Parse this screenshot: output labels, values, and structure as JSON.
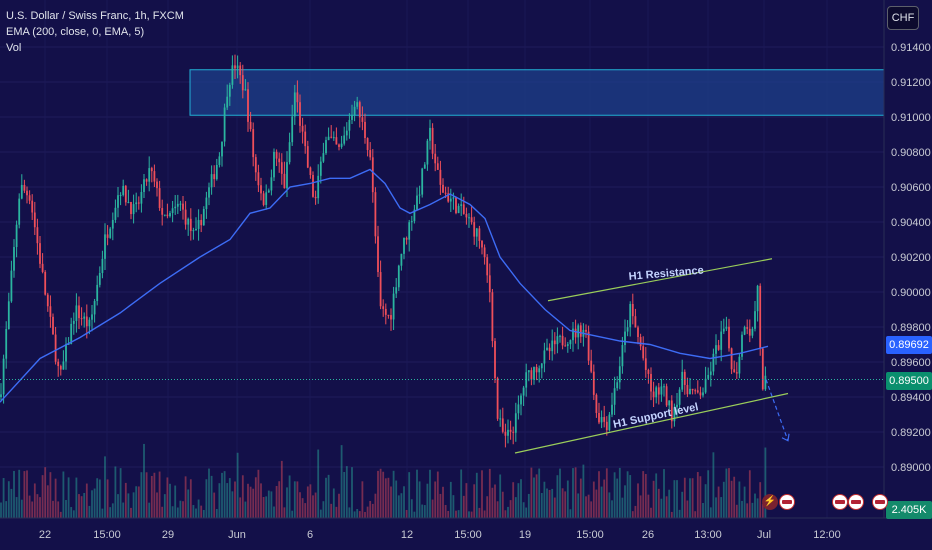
{
  "legend": {
    "symbol": "U.S. Dollar / Swiss Franc, 1h, FXCM",
    "ema": "EMA (200, close, 0, EMA, 5)",
    "vol": "Vol"
  },
  "currency": "CHF",
  "price_tags": {
    "ema": "0.89692",
    "last": "0.89500",
    "volume": "2.405K"
  },
  "annotations": {
    "resistance": "H1 Resistance",
    "support": "H1 Support level"
  },
  "colors": {
    "background": "#131049",
    "up": "#2bb5a0",
    "down": "#ef4f5a",
    "ema": "#3d6cf5",
    "zone_fill": "#1e3f8a",
    "zone_border": "#21b1d6",
    "channel": "#9acd5a"
  },
  "chart_data": {
    "type": "candlestick",
    "symbol": "USDCHF",
    "timeframe": "1h",
    "ylim": [
      0.888,
      0.9158
    ],
    "y_ticks": [
      "0.91400",
      "0.91200",
      "0.91000",
      "0.90800",
      "0.90600",
      "0.90400",
      "0.90200",
      "0.90000",
      "0.89800",
      "0.89600",
      "0.89400",
      "0.89200",
      "0.89000"
    ],
    "x_ticks": [
      "22",
      "15:00",
      "29",
      "Jun",
      "6",
      "12",
      "15:00",
      "19",
      "15:00",
      "26",
      "13:00",
      "Jul",
      "12:00"
    ],
    "close_path": [
      [
        0,
        0.894
      ],
      [
        20,
        0.906
      ],
      [
        30,
        0.9055
      ],
      [
        45,
        0.9
      ],
      [
        60,
        0.895
      ],
      [
        75,
        0.899
      ],
      [
        90,
        0.898
      ],
      [
        105,
        0.903
      ],
      [
        120,
        0.906
      ],
      [
        135,
        0.9045
      ],
      [
        150,
        0.907
      ],
      [
        165,
        0.904
      ],
      [
        180,
        0.905
      ],
      [
        195,
        0.903
      ],
      [
        210,
        0.906
      ],
      [
        220,
        0.908
      ],
      [
        228,
        0.912
      ],
      [
        235,
        0.913
      ],
      [
        245,
        0.9115
      ],
      [
        255,
        0.907
      ],
      [
        265,
        0.905
      ],
      [
        275,
        0.908
      ],
      [
        285,
        0.906
      ],
      [
        295,
        0.9115
      ],
      [
        305,
        0.908
      ],
      [
        315,
        0.905
      ],
      [
        325,
        0.909
      ],
      [
        340,
        0.908
      ],
      [
        355,
        0.911
      ],
      [
        370,
        0.908
      ],
      [
        380,
        0.899
      ],
      [
        390,
        0.8985
      ],
      [
        400,
        0.902
      ],
      [
        410,
        0.904
      ],
      [
        420,
        0.906
      ],
      [
        430,
        0.909
      ],
      [
        440,
        0.906
      ],
      [
        455,
        0.905
      ],
      [
        470,
        0.904
      ],
      [
        480,
        0.903
      ],
      [
        490,
        0.9
      ],
      [
        497,
        0.893
      ],
      [
        505,
        0.8915
      ],
      [
        515,
        0.8925
      ],
      [
        525,
        0.895
      ],
      [
        540,
        0.896
      ],
      [
        555,
        0.897
      ],
      [
        570,
        0.8975
      ],
      [
        585,
        0.898
      ],
      [
        597,
        0.893
      ],
      [
        607,
        0.8925
      ],
      [
        617,
        0.895
      ],
      [
        630,
        0.899
      ],
      [
        640,
        0.897
      ],
      [
        652,
        0.894
      ],
      [
        662,
        0.8945
      ],
      [
        672,
        0.893
      ],
      [
        682,
        0.895
      ],
      [
        695,
        0.894
      ],
      [
        705,
        0.8945
      ],
      [
        715,
        0.8965
      ],
      [
        725,
        0.898
      ],
      [
        735,
        0.895
      ],
      [
        745,
        0.8985
      ],
      [
        752,
        0.8975
      ],
      [
        758,
        0.9005
      ],
      [
        762,
        0.894
      ],
      [
        768,
        0.8955
      ]
    ],
    "ema_path": [
      [
        0,
        0.8937
      ],
      [
        40,
        0.8962
      ],
      [
        80,
        0.8974
      ],
      [
        120,
        0.8988
      ],
      [
        160,
        0.9005
      ],
      [
        200,
        0.902
      ],
      [
        230,
        0.903
      ],
      [
        250,
        0.9045
      ],
      [
        270,
        0.9048
      ],
      [
        290,
        0.906
      ],
      [
        310,
        0.9062
      ],
      [
        330,
        0.9065
      ],
      [
        350,
        0.9065
      ],
      [
        370,
        0.907
      ],
      [
        385,
        0.9062
      ],
      [
        400,
        0.9048
      ],
      [
        410,
        0.9045
      ],
      [
        430,
        0.905
      ],
      [
        450,
        0.9056
      ],
      [
        470,
        0.905
      ],
      [
        485,
        0.9042
      ],
      [
        500,
        0.902
      ],
      [
        520,
        0.9005
      ],
      [
        545,
        0.899
      ],
      [
        570,
        0.8978
      ],
      [
        595,
        0.8975
      ],
      [
        620,
        0.8972
      ],
      [
        650,
        0.897
      ],
      [
        680,
        0.8965
      ],
      [
        710,
        0.8962
      ],
      [
        740,
        0.8965
      ],
      [
        768,
        0.8969
      ]
    ],
    "supply_zone": [
      0.9101,
      0.9127
    ],
    "channel_upper": [
      [
        548,
        0.8995
      ],
      [
        772,
        0.9019
      ]
    ],
    "channel_lower": [
      [
        515,
        0.8908
      ],
      [
        788,
        0.8942
      ]
    ],
    "projection": [
      [
        766,
        0.895
      ],
      [
        788,
        0.8915
      ]
    ],
    "last_price": 0.895,
    "ema_value": 0.89692,
    "volume_last": "2.405K"
  }
}
